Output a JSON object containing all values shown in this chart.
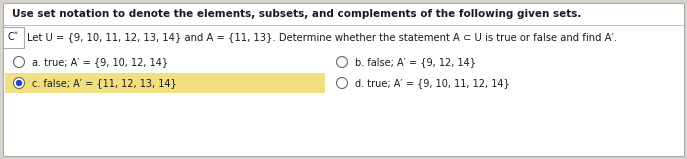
{
  "title": "Use set notation to denote the elements, subsets, and complements of the following given sets.",
  "question_label": "C˅",
  "question_text": "Let U = {9, 10, 11, 12, 13, 14} and A = {11, 13}. Determine whether the statement A ⊂ U is true or false and find A′.",
  "options": [
    {
      "label": "a.",
      "text": "true; A′ = {9, 10, 12, 14}"
    },
    {
      "label": "b.",
      "text": "false; A′ = {9, 12, 14}"
    },
    {
      "label": "c.",
      "text": "false; A′ = {11, 12, 13, 14}"
    },
    {
      "label": "d.",
      "text": "true; A′ = {9, 10, 11, 12, 14}"
    }
  ],
  "selected_option": 2,
  "bg_color": "#d8d4cc",
  "white_color": "#ffffff",
  "highlight_color": "#f0e080",
  "text_color": "#1a1a1a",
  "border_color": "#aaaaaa",
  "title_fontsize": 7.5,
  "question_fontsize": 7.2,
  "option_fontsize": 7.0,
  "label_fontsize": 7.0,
  "fig_width": 6.87,
  "fig_height": 1.59,
  "dpi": 100
}
